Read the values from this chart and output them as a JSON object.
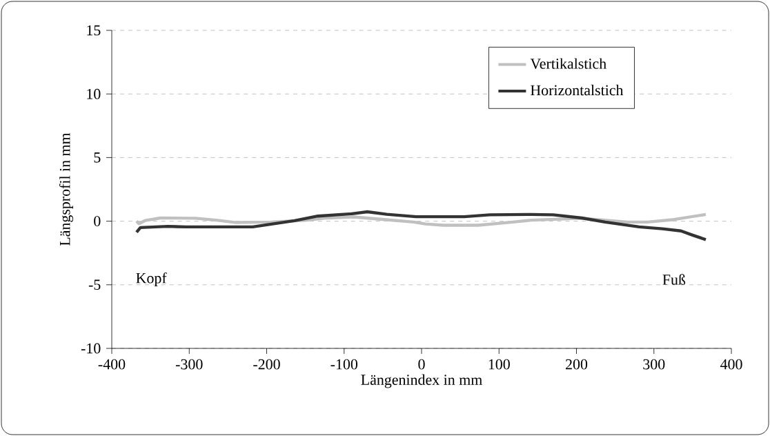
{
  "chart_data": {
    "type": "line",
    "xlabel": "Längenindex in mm",
    "ylabel": "Längsprofil in mm",
    "xlim": [
      -400,
      400
    ],
    "ylim": [
      -10,
      15
    ],
    "xticks": [
      -400,
      -300,
      -200,
      -100,
      0,
      100,
      200,
      300,
      400
    ],
    "yticks": [
      -10,
      -5,
      0,
      5,
      10,
      15
    ],
    "grid": "y",
    "legend": "top right",
    "marker": "none",
    "line_style": "solid",
    "annotations": [
      "Kopf",
      "Fuß"
    ],
    "series": [
      {
        "name": "Vertikalstich",
        "color": "#c0c0c0",
        "x": [
          -368,
          -365,
          -357,
          -337,
          -292,
          -265,
          -241,
          -194,
          -150,
          -126,
          -87,
          -48,
          -10,
          5,
          28,
          73,
          118,
          142,
          207,
          266,
          292,
          326,
          367
        ],
        "values": [
          0,
          -0.2,
          0.05,
          0.25,
          0.23,
          0.08,
          -0.1,
          -0.07,
          0.07,
          0.23,
          0.33,
          0.13,
          -0.07,
          -0.22,
          -0.32,
          -0.32,
          -0.07,
          0.08,
          0.23,
          -0.07,
          -0.07,
          0.13,
          0.53
        ]
      },
      {
        "name": "Horizontalstich",
        "color": "#333333",
        "x": [
          -368,
          -363,
          -328,
          -304,
          -218,
          -194,
          -164,
          -134,
          -90,
          -70,
          -45,
          -7,
          55,
          88,
          142,
          170,
          207,
          237,
          281,
          311,
          335,
          350,
          367
        ],
        "values": [
          -0.87,
          -0.5,
          -0.41,
          -0.45,
          -0.45,
          -0.23,
          0.04,
          0.4,
          0.58,
          0.74,
          0.54,
          0.35,
          0.35,
          0.5,
          0.53,
          0.5,
          0.25,
          -0.07,
          -0.45,
          -0.6,
          -0.77,
          -1.1,
          -1.45
        ]
      }
    ]
  }
}
